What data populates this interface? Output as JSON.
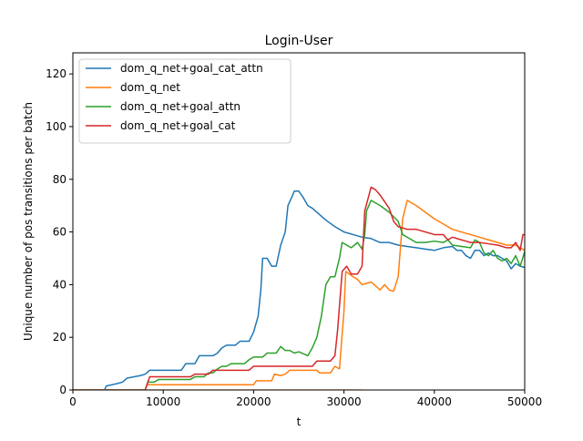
{
  "chart_data": {
    "type": "line",
    "title": "Login-User",
    "xlabel": "t",
    "ylabel": "Unique number of pos transitions per batch",
    "xlim": [
      0,
      50000
    ],
    "ylim": [
      0,
      128
    ],
    "xticks": [
      0,
      10000,
      20000,
      30000,
      40000,
      50000
    ],
    "yticks": [
      0,
      20,
      40,
      60,
      80,
      100,
      120
    ],
    "grid": false,
    "legend_position": "top-left",
    "series": [
      {
        "name": "dom_q_net+goal_cat_attn",
        "color": "#1f77b4",
        "points": [
          [
            0,
            0
          ],
          [
            3500,
            0
          ],
          [
            3700,
            1.5
          ],
          [
            5000,
            2.5
          ],
          [
            5500,
            3
          ],
          [
            6000,
            4.5
          ],
          [
            7500,
            5.5
          ],
          [
            8000,
            6
          ],
          [
            8500,
            7.5
          ],
          [
            12000,
            7.5
          ],
          [
            12500,
            10
          ],
          [
            13500,
            10
          ],
          [
            14000,
            13
          ],
          [
            15500,
            13
          ],
          [
            16000,
            14
          ],
          [
            16500,
            16
          ],
          [
            17000,
            17
          ],
          [
            18000,
            17
          ],
          [
            18500,
            18.5
          ],
          [
            19500,
            18.5
          ],
          [
            20000,
            22
          ],
          [
            20500,
            28
          ],
          [
            20800,
            38
          ],
          [
            21000,
            50
          ],
          [
            21500,
            50
          ],
          [
            22000,
            47
          ],
          [
            22500,
            47
          ],
          [
            23000,
            55
          ],
          [
            23500,
            60
          ],
          [
            23800,
            70
          ],
          [
            24200,
            73
          ],
          [
            24500,
            75.5
          ],
          [
            25000,
            75.5
          ],
          [
            25500,
            73
          ],
          [
            26000,
            70
          ],
          [
            26500,
            69
          ],
          [
            27000,
            67.5
          ],
          [
            28000,
            64.5
          ],
          [
            29000,
            62
          ],
          [
            30000,
            60
          ],
          [
            31000,
            59
          ],
          [
            32000,
            58
          ],
          [
            33000,
            57.5
          ],
          [
            34000,
            56
          ],
          [
            35000,
            56
          ],
          [
            36000,
            55
          ],
          [
            37000,
            54.5
          ],
          [
            38000,
            54
          ],
          [
            39000,
            53.5
          ],
          [
            40000,
            53
          ],
          [
            41000,
            54
          ],
          [
            42000,
            54.5
          ],
          [
            42500,
            53
          ],
          [
            43000,
            53
          ],
          [
            43500,
            51
          ],
          [
            44000,
            50
          ],
          [
            44500,
            53
          ],
          [
            45000,
            53
          ],
          [
            45500,
            51
          ],
          [
            46000,
            52
          ],
          [
            46500,
            51
          ],
          [
            47000,
            51
          ],
          [
            47500,
            50
          ],
          [
            48000,
            49
          ],
          [
            48500,
            46
          ],
          [
            49000,
            48
          ],
          [
            49500,
            47
          ],
          [
            50000,
            46.5
          ]
        ]
      },
      {
        "name": "dom_q_net",
        "color": "#ff7f0e",
        "points": [
          [
            0,
            0
          ],
          [
            8000,
            0
          ],
          [
            8200,
            2
          ],
          [
            20000,
            2
          ],
          [
            20300,
            3.5
          ],
          [
            22000,
            3.5
          ],
          [
            22300,
            6
          ],
          [
            23000,
            5.5
          ],
          [
            23500,
            6
          ],
          [
            24000,
            7.5
          ],
          [
            27000,
            7.5
          ],
          [
            27300,
            6.5
          ],
          [
            28500,
            6.5
          ],
          [
            29000,
            9
          ],
          [
            29500,
            8
          ],
          [
            30000,
            30
          ],
          [
            30200,
            45
          ],
          [
            31000,
            43
          ],
          [
            31500,
            42
          ],
          [
            32000,
            40
          ],
          [
            33000,
            41
          ],
          [
            34000,
            38
          ],
          [
            34500,
            40
          ],
          [
            35000,
            38
          ],
          [
            35500,
            37.5
          ],
          [
            36000,
            43
          ],
          [
            36500,
            65
          ],
          [
            37000,
            72
          ],
          [
            38000,
            70
          ],
          [
            39000,
            67.5
          ],
          [
            40000,
            65
          ],
          [
            41000,
            63
          ],
          [
            42000,
            61
          ],
          [
            43000,
            60
          ],
          [
            44000,
            59
          ],
          [
            45000,
            58
          ],
          [
            46000,
            57
          ],
          [
            47000,
            56
          ],
          [
            48000,
            55
          ],
          [
            49000,
            55
          ],
          [
            50000,
            53
          ]
        ]
      },
      {
        "name": "dom_q_net+goal_attn",
        "color": "#2ca02c",
        "points": [
          [
            0,
            0
          ],
          [
            8000,
            0
          ],
          [
            8300,
            3
          ],
          [
            9000,
            3
          ],
          [
            9500,
            4
          ],
          [
            13000,
            4
          ],
          [
            13500,
            5
          ],
          [
            14500,
            5
          ],
          [
            15000,
            6.5
          ],
          [
            15500,
            6.5
          ],
          [
            16000,
            8
          ],
          [
            16500,
            9
          ],
          [
            17000,
            9
          ],
          [
            17500,
            10
          ],
          [
            19000,
            10
          ],
          [
            19500,
            11.5
          ],
          [
            20000,
            12.5
          ],
          [
            21000,
            12.5
          ],
          [
            21500,
            14
          ],
          [
            22500,
            14
          ],
          [
            23000,
            16.5
          ],
          [
            23500,
            15
          ],
          [
            24000,
            15
          ],
          [
            24500,
            14
          ],
          [
            25000,
            14.5
          ],
          [
            26000,
            13
          ],
          [
            26500,
            16
          ],
          [
            27000,
            20
          ],
          [
            27500,
            28
          ],
          [
            28000,
            40
          ],
          [
            28500,
            43
          ],
          [
            29000,
            43
          ],
          [
            29500,
            50
          ],
          [
            29800,
            56
          ],
          [
            30300,
            55
          ],
          [
            30800,
            54
          ],
          [
            31500,
            56
          ],
          [
            32000,
            53.5
          ],
          [
            32300,
            59
          ],
          [
            32500,
            68
          ],
          [
            33000,
            72
          ],
          [
            33500,
            71
          ],
          [
            34000,
            70
          ],
          [
            35000,
            67.5
          ],
          [
            36000,
            64
          ],
          [
            36500,
            59
          ],
          [
            37000,
            58
          ],
          [
            38000,
            56
          ],
          [
            39000,
            56
          ],
          [
            40000,
            56.5
          ],
          [
            41000,
            56
          ],
          [
            41500,
            57
          ],
          [
            42000,
            55
          ],
          [
            43000,
            54.5
          ],
          [
            44000,
            54
          ],
          [
            44500,
            57
          ],
          [
            45000,
            56
          ],
          [
            45500,
            52
          ],
          [
            46000,
            51
          ],
          [
            46500,
            53
          ],
          [
            47000,
            50
          ],
          [
            47500,
            49
          ],
          [
            48000,
            50
          ],
          [
            48500,
            48
          ],
          [
            49000,
            51
          ],
          [
            49500,
            47
          ],
          [
            50000,
            52.5
          ]
        ]
      },
      {
        "name": "dom_q_net+goal_cat",
        "color": "#d62728",
        "points": [
          [
            0,
            0
          ],
          [
            8000,
            0
          ],
          [
            8500,
            5
          ],
          [
            13000,
            5
          ],
          [
            13500,
            6
          ],
          [
            15000,
            6
          ],
          [
            15500,
            7.5
          ],
          [
            19500,
            7.5
          ],
          [
            20000,
            9
          ],
          [
            26500,
            9
          ],
          [
            27000,
            11
          ],
          [
            28500,
            11
          ],
          [
            29000,
            13
          ],
          [
            29300,
            23
          ],
          [
            29800,
            45
          ],
          [
            30300,
            47
          ],
          [
            30800,
            44
          ],
          [
            31500,
            44
          ],
          [
            32000,
            47
          ],
          [
            32300,
            68
          ],
          [
            33000,
            77
          ],
          [
            33500,
            76
          ],
          [
            34000,
            74
          ],
          [
            35000,
            69
          ],
          [
            35500,
            64
          ],
          [
            36000,
            62
          ],
          [
            37000,
            61
          ],
          [
            38000,
            61
          ],
          [
            39000,
            60
          ],
          [
            40000,
            59
          ],
          [
            41000,
            59
          ],
          [
            41500,
            57
          ],
          [
            42000,
            58
          ],
          [
            43000,
            57
          ],
          [
            44000,
            56
          ],
          [
            45000,
            56
          ],
          [
            46000,
            55.5
          ],
          [
            47000,
            55
          ],
          [
            48000,
            54
          ],
          [
            48500,
            54
          ],
          [
            49000,
            56
          ],
          [
            49500,
            53
          ],
          [
            49800,
            59
          ],
          [
            50000,
            59
          ]
        ]
      },
      {
        "name": "",
        "color": "#ffbb78",
        "points": [
          [
            0,
            0
          ],
          [
            32000,
            0
          ]
        ]
      }
    ]
  }
}
